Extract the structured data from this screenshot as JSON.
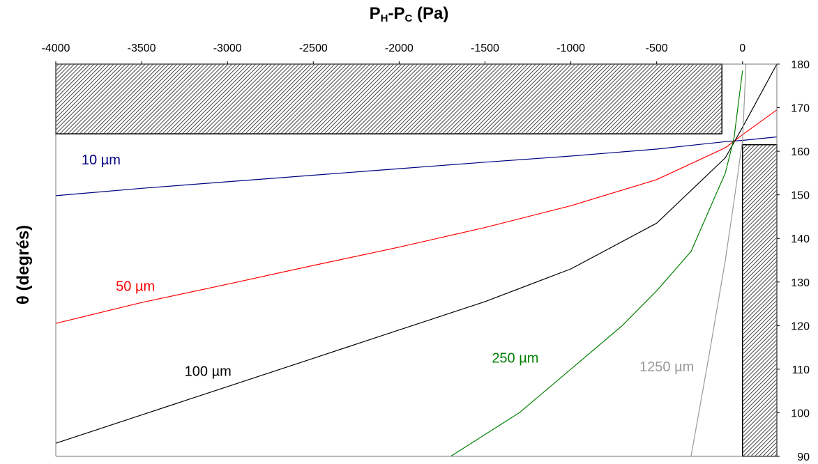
{
  "chart_data": {
    "type": "line",
    "title_parts": {
      "main": "P",
      "sub1": "H",
      "mid": "-P",
      "sub2": "C",
      "unit": " (Pa)"
    },
    "ylabel": "θ (degrés)",
    "x_axis": {
      "position": "top",
      "range": [
        -4000,
        200
      ],
      "ticks": [
        -4000,
        -3500,
        -3000,
        -2500,
        -2000,
        -1500,
        -1000,
        -500,
        0
      ]
    },
    "y_axis": {
      "position": "right",
      "range": [
        90,
        180
      ],
      "ticks": [
        90,
        100,
        110,
        120,
        130,
        140,
        150,
        160,
        170,
        180
      ]
    },
    "grid": false,
    "hatched_regions": [
      {
        "x": [
          -4000,
          -120
        ],
        "y": [
          164,
          180
        ]
      },
      {
        "x": [
          0,
          200
        ],
        "y": [
          90,
          161.5
        ]
      }
    ],
    "series": [
      {
        "name": "10 µm",
        "color": "#000080",
        "x": [
          -4000,
          -3500,
          -3000,
          -2500,
          -2000,
          -1500,
          -1000,
          -500,
          -100,
          0,
          200
        ],
        "y": [
          149.8,
          151.5,
          153.0,
          154.5,
          156.0,
          157.5,
          158.9,
          160.5,
          162.2,
          162.5,
          163.3
        ]
      },
      {
        "name": "50 µm",
        "color": "#ff0000",
        "x": [
          -4000,
          -3500,
          -3000,
          -2500,
          -2000,
          -1500,
          -1000,
          -500,
          -100,
          0,
          200
        ],
        "y": [
          120.5,
          125.3,
          129.5,
          133.8,
          138.0,
          142.5,
          147.5,
          153.5,
          160.8,
          163.8,
          169.5
        ]
      },
      {
        "name": "100 µm",
        "color": "#000000",
        "x": [
          -4000,
          -3500,
          -3000,
          -2500,
          -2000,
          -1500,
          -1000,
          -500,
          -100,
          0,
          200
        ],
        "y": [
          93.0,
          99.5,
          106.0,
          112.5,
          119.0,
          125.5,
          133.0,
          143.5,
          158.5,
          165.5,
          180
        ]
      },
      {
        "name": "250 µm",
        "color": "#008000",
        "x": [
          -1700,
          -1300,
          -1000,
          -700,
          -500,
          -300,
          -100,
          -50,
          0
        ],
        "y": [
          90,
          100,
          110,
          120,
          128.0,
          137.0,
          155.0,
          163.0,
          178.5
        ]
      },
      {
        "name": "1250 µm",
        "color": "#999999",
        "x": [
          -300,
          -200,
          -100,
          -50,
          0,
          20
        ],
        "y": [
          90,
          112,
          135,
          148.5,
          162.5,
          180
        ]
      }
    ]
  },
  "labels": [
    {
      "text": "10 µm",
      "color": "#000080",
      "x": -3850,
      "y": 157
    },
    {
      "text": "50 µm",
      "color": "#ff0000",
      "x": -3650,
      "y": 128
    },
    {
      "text": "100 µm",
      "color": "#000000",
      "x": -3250,
      "y": 108.5
    },
    {
      "text": "250 µm",
      "color": "#008000",
      "x": -1460,
      "y": 111.5
    },
    {
      "text": "1250 µm",
      "color": "#999999",
      "x": -600,
      "y": 109.5
    }
  ]
}
